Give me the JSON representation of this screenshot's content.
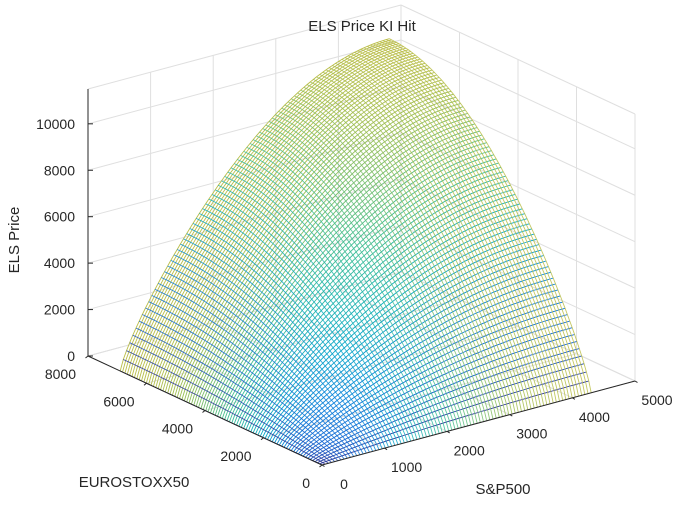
{
  "chart_data": {
    "type": "surface",
    "title": "ELS Price KI Hit",
    "xlabel": "S&P500",
    "ylabel": "EUROSTOXX50",
    "zlabel": "ELS Price",
    "xlim": [
      0,
      5000
    ],
    "ylim": [
      0,
      8000
    ],
    "zlim": [
      0,
      11500
    ],
    "x_ticks": [
      0,
      1000,
      2000,
      3000,
      4000,
      5000
    ],
    "y_ticks": [
      0,
      2000,
      4000,
      6000,
      8000
    ],
    "z_ticks": [
      0,
      2000,
      4000,
      6000,
      8000,
      10000
    ],
    "grid": true,
    "colormap": "parula",
    "x_data_max": 4300,
    "y_data_max": 6900,
    "z_peak": 11200,
    "surface_samples": [
      {
        "x": 0,
        "y": 0,
        "z": 0
      },
      {
        "x": 4300,
        "y": 0,
        "z": 0
      },
      {
        "x": 0,
        "y": 6900,
        "z": 0
      },
      {
        "x": 2150,
        "y": 3450,
        "z": 4800
      },
      {
        "x": 3200,
        "y": 5100,
        "z": 8500
      },
      {
        "x": 4300,
        "y": 6900,
        "z": 11200
      }
    ]
  }
}
